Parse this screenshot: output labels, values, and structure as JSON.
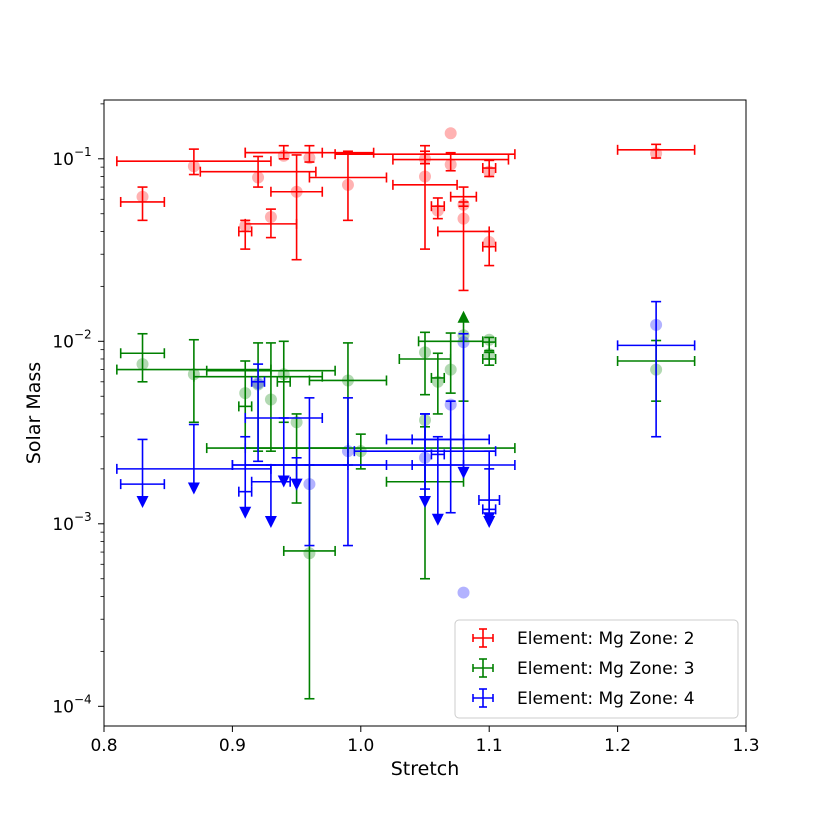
{
  "chart_data": {
    "type": "scatter",
    "title": "",
    "xlabel": "Stretch",
    "ylabel": "Solar Mass",
    "xlim": [
      0.8,
      1.3
    ],
    "ylim": [
      7.8e-05,
      0.21
    ],
    "yscale": "log",
    "grid": false,
    "legend_position": "lower-right",
    "x_ticks": [
      {
        "value": 0.8,
        "label": "0.8"
      },
      {
        "value": 0.9,
        "label": "0.9"
      },
      {
        "value": 1.0,
        "label": "1.0"
      },
      {
        "value": 1.1,
        "label": "1.1"
      },
      {
        "value": 1.2,
        "label": "1.2"
      },
      {
        "value": 1.3,
        "label": "1.3"
      }
    ],
    "y_ticks": [
      {
        "value": 0.1,
        "label": "10",
        "exp": "−1"
      },
      {
        "value": 0.01,
        "label": "10",
        "exp": "−2"
      },
      {
        "value": 0.001,
        "label": "10",
        "exp": "−3"
      },
      {
        "value": 0.0001,
        "label": "10",
        "exp": "−4"
      }
    ],
    "series": [
      {
        "name": "Element: Mg  Zone: 2",
        "color": "#ff0000",
        "points": [
          {
            "x": 0.83,
            "y": 0.058,
            "xerr": 0.017,
            "ylo": 0.046,
            "yhi": 0.07,
            "marker_y": 0.062
          },
          {
            "x": 0.87,
            "y": 0.097,
            "xerr": 0.06,
            "ylo": 0.082,
            "yhi": 0.113,
            "marker_y": 0.091
          },
          {
            "x": 0.91,
            "y": 0.04,
            "xerr": 0.005,
            "ylo": 0.032,
            "yhi": 0.046,
            "marker_y": 0.043
          },
          {
            "x": 0.92,
            "y": 0.085,
            "xerr": 0.045,
            "ylo": 0.07,
            "yhi": 0.103,
            "marker_y": 0.079
          },
          {
            "x": 0.93,
            "y": 0.044,
            "xerr": 0.02,
            "ylo": 0.037,
            "yhi": 0.053,
            "marker_y": 0.048
          },
          {
            "x": 0.94,
            "y": 0.108,
            "xerr": 0.03,
            "ylo": 0.1,
            "yhi": 0.118,
            "marker_y": 0.104
          },
          {
            "x": 0.95,
            "y": 0.066,
            "xerr": 0.02,
            "ylo": 0.028,
            "yhi": 0.105,
            "marker_y": 0.066
          },
          {
            "x": 0.96,
            "y": 0.108,
            "xerr": 0.05,
            "ylo": 0.096,
            "yhi": 0.118,
            "marker_y": 0.101
          },
          {
            "x": 0.99,
            "y": 0.079,
            "xerr": 0.03,
            "ylo": 0.046,
            "yhi": 0.11,
            "marker_y": 0.072
          },
          {
            "x": 1.05,
            "y": 0.106,
            "xerr": 0.07,
            "ylo": 0.094,
            "yhi": 0.118,
            "marker_y": 0.1
          },
          {
            "x": 1.05,
            "y": 0.072,
            "xerr": 0.025,
            "ylo": 0.032,
            "yhi": 0.11,
            "marker_y": 0.08
          },
          {
            "x": 1.06,
            "y": 0.055,
            "xerr": 0.005,
            "ylo": 0.047,
            "yhi": 0.061,
            "marker_y": 0.052
          },
          {
            "x": 1.07,
            "y": 0.099,
            "xerr": 0.045,
            "ylo": 0.086,
            "yhi": 0.108,
            "marker_y": 0.093
          },
          {
            "x": 1.08,
            "y": 0.062,
            "xerr": 0.01,
            "ylo": 0.055,
            "yhi": 0.07,
            "marker_y": 0.056
          },
          {
            "x": 1.08,
            "y": 0.04,
            "xerr": 0.02,
            "ylo": 0.019,
            "yhi": 0.058,
            "marker_y": 0.047
          },
          {
            "x": 1.1,
            "y": 0.089,
            "xerr": 0.005,
            "ylo": 0.08,
            "yhi": 0.098,
            "marker_y": 0.085
          },
          {
            "x": 1.1,
            "y": 0.033,
            "xerr": 0.005,
            "ylo": 0.026,
            "yhi": 0.04,
            "marker_y": 0.035
          },
          {
            "x": 1.23,
            "y": 0.112,
            "xerr": 0.03,
            "ylo": 0.101,
            "yhi": 0.12,
            "marker_y": 0.107
          },
          {
            "x": 1.07,
            "y": 0.138,
            "marker_only": true
          }
        ]
      },
      {
        "name": "Element: Mg  Zone: 3",
        "color": "#008000",
        "points": [
          {
            "x": 0.83,
            "y": 0.0086,
            "xerr": 0.017,
            "ylo": 0.006,
            "yhi": 0.011,
            "marker_y": 0.0075
          },
          {
            "x": 0.87,
            "y": 0.007,
            "xerr": 0.06,
            "ylo": 0.0036,
            "yhi": 0.0102,
            "marker_y": 0.0066
          },
          {
            "x": 0.91,
            "y": 0.0044,
            "xerr": 0.005,
            "ylo": 0.0026,
            "yhi": 0.0078,
            "marker_y": 0.0052
          },
          {
            "x": 0.92,
            "y": 0.0064,
            "xerr": 0.05,
            "ylo": 0.0025,
            "yhi": 0.0098,
            "marker_y": 0.0058
          },
          {
            "x": 0.93,
            "y": 0.0069,
            "xerr": 0.05,
            "ylo": 0.0025,
            "yhi": 0.0098,
            "marker_y": 0.0048
          },
          {
            "x": 0.94,
            "y": 0.006,
            "xerr": 0.005,
            "ylo": 0.0036,
            "yhi": 0.01,
            "marker_y": 0.0066
          },
          {
            "x": 0.95,
            "y": 0.0026,
            "xerr": 0.04,
            "ylo": 0.0013,
            "yhi": 0.004,
            "marker_y": 0.0036
          },
          {
            "x": 0.96,
            "y": 0.00071,
            "xerr": 0.02,
            "ylo": 0.00011,
            "yhi": 0.0021,
            "marker_y": 0.00069
          },
          {
            "x": 0.99,
            "y": 0.0061,
            "xerr": 0.03,
            "ylo": 0.0021,
            "yhi": 0.0098,
            "marker_y": 0.0061
          },
          {
            "x": 1.0,
            "y": 0.0026,
            "xerr": 0.12,
            "ylo": 0.002,
            "yhi": 0.0031,
            "marker_y": 0.0025
          },
          {
            "x": 1.05,
            "y": 0.008,
            "xerr": 0.02,
            "ylo": 0.0051,
            "yhi": 0.0112,
            "marker_y": 0.0087
          },
          {
            "x": 1.05,
            "y": 0.0017,
            "xerr": 0.03,
            "ylo": 0.0005,
            "yhi": 0.0034,
            "marker_y": 0.0037
          },
          {
            "x": 1.06,
            "y": 0.0063,
            "xerr": 0.005,
            "ylo": 0.004,
            "yhi": 0.0086,
            "marker_y": 0.006
          },
          {
            "x": 1.07,
            "y": 0.01,
            "xerr": 0.025,
            "ylo": 0.0052,
            "yhi": 0.0111,
            "marker_y": 0.007
          },
          {
            "x": 1.08,
            "y": 0.0133,
            "uplimit": true,
            "ylo": 0.0047,
            "marker_y": 0.0108
          },
          {
            "x": 1.1,
            "y": 0.0099,
            "xerr": 0.005,
            "ylo": 0.0089,
            "yhi": 0.0105,
            "marker_y": 0.0102
          },
          {
            "x": 1.1,
            "y": 0.008,
            "xerr": 0.005,
            "ylo": 0.0074,
            "yhi": 0.0087,
            "marker_y": 0.0085
          },
          {
            "x": 1.23,
            "y": 0.0078,
            "xerr": 0.03,
            "ylo": 0.0047,
            "yhi": 0.0101,
            "marker_y": 0.007
          }
        ]
      },
      {
        "name": "Element: Mg  Zone: 4",
        "color": "#0000ff",
        "points": [
          {
            "x": 0.83,
            "y": 0.00165,
            "xerr": 0.017,
            "ylo": 0.00135,
            "yhi": 0.0029,
            "lolimit": true
          },
          {
            "x": 0.87,
            "y": 0.002,
            "xerr": 0.06,
            "ylo": 0.0016,
            "yhi": 0.0035,
            "lolimit": true
          },
          {
            "x": 0.91,
            "y": 0.0015,
            "xerr": 0.005,
            "ylo": 0.00118,
            "yhi": 0.003,
            "lolimit": true
          },
          {
            "x": 0.92,
            "y": 0.006,
            "xerr": 0.005,
            "ylo": 0.0022,
            "yhi": 0.0075,
            "marker_y": 0.0059
          },
          {
            "x": 0.93,
            "y": 0.0017,
            "xerr": 0.015,
            "ylo": 0.00105,
            "yhi": 0.0021,
            "lolimit": true
          },
          {
            "x": 0.94,
            "y": 0.0038,
            "xerr": 0.03,
            "ylo": 0.00175,
            "yhi": 0.0038,
            "lolimit": true
          },
          {
            "x": 0.95,
            "y": 0.0021,
            "xerr": 0.04,
            "ylo": 0.00168,
            "yhi": 0.0023,
            "lolimit": true
          },
          {
            "x": 0.96,
            "y": 0.0021,
            "xerr": 0.06,
            "ylo": 0.00076,
            "yhi": 0.0049,
            "marker_y": 0.00165
          },
          {
            "x": 0.99,
            "y": 0.0021,
            "xerr": 0.09,
            "ylo": 0.00076,
            "yhi": 0.0049,
            "marker_y": 0.0025
          },
          {
            "x": 1.05,
            "y": 0.0029,
            "xerr": 0.03,
            "ylo": 0.00135,
            "yhi": 0.004,
            "lolimit": true
          },
          {
            "x": 1.05,
            "y": 0.0025,
            "xerr": 0.055,
            "ylo": 0.00155,
            "yhi": 0.004,
            "marker_y": 0.0023
          },
          {
            "x": 1.06,
            "y": 0.0024,
            "xerr": 0.005,
            "ylo": 0.00108,
            "yhi": 0.003,
            "lolimit": true
          },
          {
            "x": 1.07,
            "y": 0.0029,
            "xerr": 0.03,
            "ylo": 0.00115,
            "yhi": 0.0047,
            "marker_y": 0.0045
          },
          {
            "x": 1.08,
            "y": 0.0021,
            "xerr": 0.04,
            "ylo": 0.00195,
            "yhi": 0.011,
            "lolimit": true,
            "marker_y": 0.0099
          },
          {
            "x": 1.08,
            "y": 0.00042,
            "marker_only": true
          },
          {
            "x": 1.1,
            "y": 0.00135,
            "xerr": 0.008,
            "ylo": 0.0011,
            "yhi": 0.0025,
            "lolimit": true
          },
          {
            "x": 1.1,
            "y": 0.0012,
            "xerr": 0.005,
            "ylo": 0.00105,
            "yhi": 0.002,
            "lolimit": true
          },
          {
            "x": 1.23,
            "y": 0.0095,
            "xerr": 0.03,
            "ylo": 0.003,
            "yhi": 0.0165,
            "marker_y": 0.0123
          }
        ]
      }
    ]
  }
}
